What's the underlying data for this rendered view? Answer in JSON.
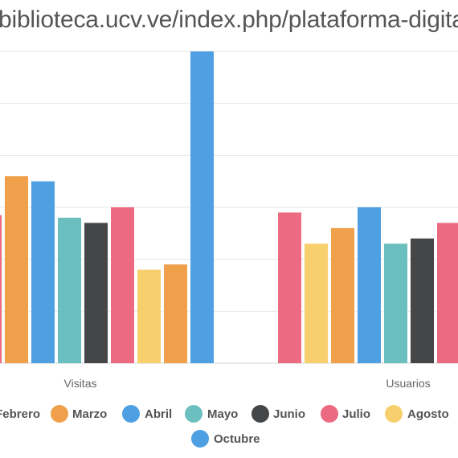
{
  "page_title": "biblioteca.ucv.ve/index.php/plataforma-digital",
  "chart_data": {
    "type": "bar",
    "title": "",
    "xlabel": "",
    "ylabel": "",
    "grid": true,
    "legend_position": "bottom",
    "categories": [
      "Visitas",
      "Usuarios"
    ],
    "ylim": [
      0,
      6
    ],
    "series": [
      {
        "name": "Febrero",
        "color": "#f4a3a8",
        "values": [
          2.8,
          null
        ]
      },
      {
        "name": "Marzo",
        "color": "#f0a04b",
        "values": [
          3.6,
          2.6
        ]
      },
      {
        "name": "Abril",
        "color": "#4f9fe3",
        "values": [
          3.5,
          3.0
        ]
      },
      {
        "name": "Mayo",
        "color": "#6bbfbf",
        "values": [
          2.8,
          2.3
        ]
      },
      {
        "name": "Junio",
        "color": "#444648",
        "values": [
          2.7,
          2.4
        ]
      },
      {
        "name": "Julio",
        "color": "#ec6b83",
        "values": [
          3.0,
          2.7
        ]
      },
      {
        "name": "Agosto",
        "color": "#f7cf6c",
        "values": [
          1.8,
          2.3
        ]
      },
      {
        "name": "Octubre",
        "color": "#4f9fe3",
        "values": [
          6.0,
          null
        ]
      }
    ],
    "bar_groups": [
      {
        "category": "Visitas",
        "bars": [
          {
            "series": "Julio",
            "value": 2.85
          },
          {
            "series": "Marzo",
            "value": 3.6
          },
          {
            "series": "Abril",
            "value": 3.5
          },
          {
            "series": "Mayo",
            "value": 2.8
          },
          {
            "series": "Junio",
            "value": 2.7
          },
          {
            "series": "Julio",
            "value": 3.0
          },
          {
            "series": "Agosto",
            "value": 1.8
          },
          {
            "series": "Marzo",
            "value": 1.9
          },
          {
            "series": "Octubre",
            "value": 6.0
          }
        ]
      },
      {
        "category": "Usuarios",
        "bars": [
          {
            "series": "Julio",
            "value": 2.9
          },
          {
            "series": "Agosto",
            "value": 2.3
          },
          {
            "series": "Marzo",
            "value": 2.6
          },
          {
            "series": "Abril",
            "value": 3.0
          },
          {
            "series": "Mayo",
            "value": 2.3
          },
          {
            "series": "Junio",
            "value": 2.4
          },
          {
            "series": "Julio",
            "value": 2.7
          }
        ]
      }
    ],
    "legend": [
      {
        "label": "Febrero",
        "color": "#f4a3a8"
      },
      {
        "label": "Marzo",
        "color": "#f0a04b"
      },
      {
        "label": "Abril",
        "color": "#4f9fe3"
      },
      {
        "label": "Mayo",
        "color": "#6bbfbf"
      },
      {
        "label": "Junio",
        "color": "#444648"
      },
      {
        "label": "Julio",
        "color": "#ec6b83"
      },
      {
        "label": "Agosto",
        "color": "#f7cf6c"
      },
      {
        "label": "Octubre",
        "color": "#4f9fe3"
      }
    ]
  }
}
